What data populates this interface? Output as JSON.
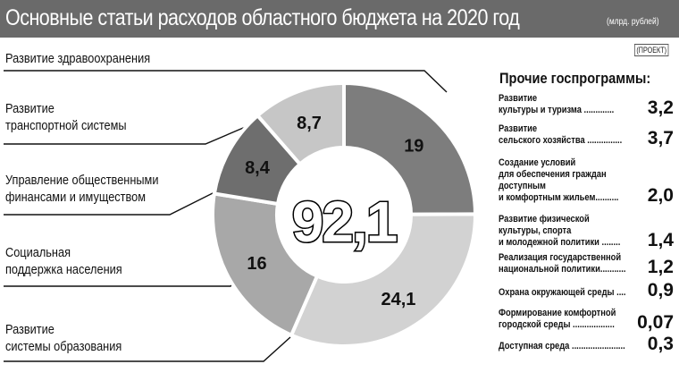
{
  "header": {
    "title": "Основные статьи расходов областного бюджета на 2020 год",
    "units": "(млрд. рублей)",
    "status": "(ПРОЕКТ)"
  },
  "chart_data": {
    "type": "pie",
    "style": "donut",
    "title": "Основные статьи расходов областного бюджета на 2020 год",
    "units": "млрд. рублей",
    "total": "92,1",
    "slices": [
      {
        "label": "Развитие здравоохранения",
        "value": 19,
        "value_text": "19",
        "color": "#7d7d7d"
      },
      {
        "label": "Развитие системы образования",
        "value": 24.1,
        "value_text": "24,1",
        "color": "#d2d2d2"
      },
      {
        "label": "Социальная поддержка населения",
        "value": 16,
        "value_text": "16",
        "color": "#a8a8a8"
      },
      {
        "label": "Управление общественными финансами и имуществом",
        "value": 8.4,
        "value_text": "8,4",
        "color": "#6e6e6e"
      },
      {
        "label": "Развитие транспортной системы",
        "value": 8.7,
        "value_text": "8,7",
        "color": "#c6c6c6"
      }
    ]
  },
  "labels": {
    "health": "Развитие здравоохранения",
    "transport": "Развитие\nтранспортной системы",
    "finance": "Управление  общественными\nфинансами и имуществом",
    "social": "Социальная\nподдержка населения",
    "education": "Развитие\nсистемы образования"
  },
  "other_programs": {
    "title": "Прочие госпрограммы:",
    "items": [
      {
        "name": "Развитие\nкультуры и туризма .............",
        "value": "3,2"
      },
      {
        "name": "Развитие\nсельского хозяйства ...............",
        "value": "3,7"
      },
      {
        "name": "Создание условий\nдля обеспечения граждан\nдоступным\nи комфортным жильем..........",
        "value": "2,0"
      },
      {
        "name": "Развитие физической\nкультуры, спорта\nи молодежной политики ........",
        "value": "1,4"
      },
      {
        "name": "Реализация государственной\nнациональной политики...........",
        "value": "1,2"
      },
      {
        "name": "Охрана окружающей среды ....",
        "value": "0,9"
      },
      {
        "name": "Формирование комфортной\nгородской среды ..................",
        "value": "0,07"
      },
      {
        "name": "Доступная среда .......................",
        "value": "0,3"
      }
    ]
  }
}
